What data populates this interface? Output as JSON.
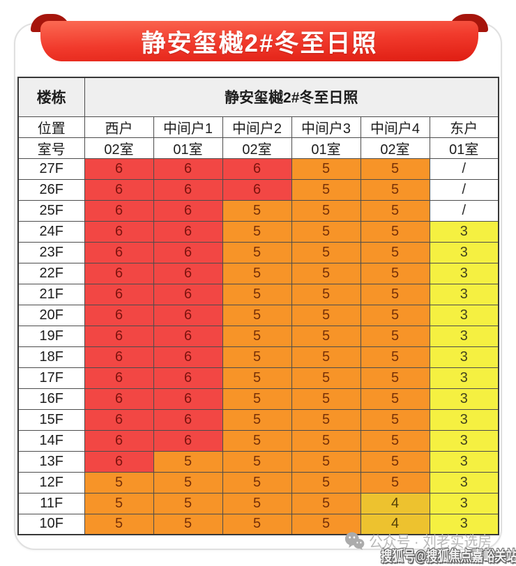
{
  "banner": {
    "title": "静安玺樾2#冬至日照"
  },
  "colors": {
    "banner": "#f13a2c",
    "banner-light": "#fb6a53",
    "banner-dark": "#df1d12",
    "curl": "#a6150c",
    "red": "#f24744",
    "orange": "#f79428",
    "gold": "#edc22f",
    "yellow": "#f5f041"
  },
  "chart_data": {
    "type": "table",
    "title": "静安玺樾2#冬至日照",
    "corner_label": "楼栋",
    "position_label": "位置",
    "room_label": "室号",
    "columns": [
      {
        "position": "西户",
        "room": "02室"
      },
      {
        "position": "中间户1",
        "room": "01室"
      },
      {
        "position": "中间户2",
        "room": "02室"
      },
      {
        "position": "中间户3",
        "room": "01室"
      },
      {
        "position": "中间户4",
        "room": "02室"
      },
      {
        "position": "东户",
        "room": "01室"
      }
    ],
    "value_colors": {
      "6": "red",
      "5": "orange",
      "4": "gold",
      "3": "yellow",
      "/": "none"
    },
    "rows": [
      {
        "floor": "27F",
        "values": [
          "6",
          "6",
          "6",
          "5",
          "5",
          "/"
        ]
      },
      {
        "floor": "26F",
        "values": [
          "6",
          "6",
          "6",
          "5",
          "5",
          "/"
        ]
      },
      {
        "floor": "25F",
        "values": [
          "6",
          "6",
          "5",
          "5",
          "5",
          "/"
        ]
      },
      {
        "floor": "24F",
        "values": [
          "6",
          "6",
          "5",
          "5",
          "5",
          "3"
        ]
      },
      {
        "floor": "23F",
        "values": [
          "6",
          "6",
          "5",
          "5",
          "5",
          "3"
        ]
      },
      {
        "floor": "22F",
        "values": [
          "6",
          "6",
          "5",
          "5",
          "5",
          "3"
        ]
      },
      {
        "floor": "21F",
        "values": [
          "6",
          "6",
          "5",
          "5",
          "5",
          "3"
        ]
      },
      {
        "floor": "20F",
        "values": [
          "6",
          "6",
          "5",
          "5",
          "5",
          "3"
        ]
      },
      {
        "floor": "19F",
        "values": [
          "6",
          "6",
          "5",
          "5",
          "5",
          "3"
        ]
      },
      {
        "floor": "18F",
        "values": [
          "6",
          "6",
          "5",
          "5",
          "5",
          "3"
        ]
      },
      {
        "floor": "17F",
        "values": [
          "6",
          "6",
          "5",
          "5",
          "5",
          "3"
        ]
      },
      {
        "floor": "16F",
        "values": [
          "6",
          "6",
          "5",
          "5",
          "5",
          "3"
        ]
      },
      {
        "floor": "15F",
        "values": [
          "6",
          "6",
          "5",
          "5",
          "5",
          "3"
        ]
      },
      {
        "floor": "14F",
        "values": [
          "6",
          "6",
          "5",
          "5",
          "5",
          "3"
        ]
      },
      {
        "floor": "13F",
        "values": [
          "6",
          "5",
          "5",
          "5",
          "5",
          "3"
        ]
      },
      {
        "floor": "12F",
        "values": [
          "5",
          "5",
          "5",
          "5",
          "5",
          "3"
        ]
      },
      {
        "floor": "11F",
        "values": [
          "5",
          "5",
          "5",
          "5",
          "4",
          "3"
        ]
      },
      {
        "floor": "10F",
        "values": [
          "5",
          "5",
          "5",
          "5",
          "4",
          "3"
        ]
      }
    ]
  },
  "watermarks": {
    "wechat_label": "公众号 · 刘老实选房",
    "sohu_label": "搜狐号@搜狐焦点嘉峪关站"
  }
}
